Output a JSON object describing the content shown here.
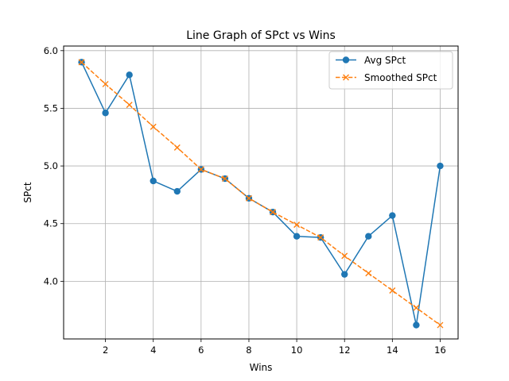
{
  "chart_data": {
    "type": "line",
    "title": "Line Graph of SPct vs Wins",
    "xlabel": "Wins",
    "ylabel": "SPct",
    "xlim": [
      0.25,
      16.75
    ],
    "ylim": [
      3.5,
      6.04
    ],
    "xticks": [
      2,
      4,
      6,
      8,
      10,
      12,
      14,
      16
    ],
    "yticks": [
      4.0,
      4.5,
      5.0,
      5.5,
      6.0
    ],
    "ytick_labels": [
      "4.0",
      "4.5",
      "5.0",
      "5.5",
      "6.0"
    ],
    "grid": true,
    "legend_position": "top-right",
    "x": [
      1,
      2,
      3,
      4,
      5,
      6,
      7,
      8,
      9,
      10,
      11,
      12,
      13,
      14,
      15,
      16
    ],
    "series": [
      {
        "name": "Avg SPct",
        "color": "#1f77b4",
        "marker": "circle",
        "linestyle": "solid",
        "values": [
          5.9,
          5.46,
          5.79,
          4.87,
          4.78,
          4.97,
          4.89,
          4.72,
          4.6,
          4.39,
          4.38,
          4.06,
          4.39,
          4.57,
          3.62,
          5.0
        ]
      },
      {
        "name": "Smoothed SPct",
        "color": "#ff7f0e",
        "marker": "x",
        "linestyle": "dashed",
        "values": [
          5.9,
          5.71,
          5.53,
          5.34,
          5.16,
          4.97,
          4.89,
          4.72,
          4.6,
          4.49,
          4.38,
          4.22,
          4.07,
          3.92,
          3.77,
          3.62
        ]
      }
    ]
  }
}
